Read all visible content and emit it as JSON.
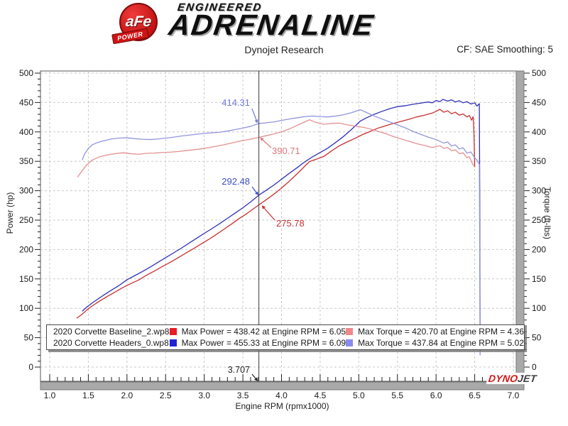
{
  "header": {
    "brand": {
      "badge_line1": "aFe",
      "badge_line2": "POWER",
      "line1": "ENGINEERED",
      "line2": "ADRENALINE"
    },
    "title": "Dynojet Research",
    "correction": "CF: SAE Smoothing: 5"
  },
  "legend": {
    "rows": [
      {
        "file": "2020 Corvette Baseline_2.wp8",
        "power_color": "#e81c24",
        "power_label": "Max Power = 438.42 at Engine RPM = 6.05",
        "torque_color": "#f08888",
        "torque_label": "Max Torque = 420.70 at Engine RPM = 4.36"
      },
      {
        "file": "2020 Corvette Headers_0.wp8",
        "power_color": "#2121d8",
        "power_label": "Max Power = 455.33 at Engine RPM = 6.09",
        "torque_color": "#8a8af0",
        "torque_label": "Max Torque = 437.84 at Engine RPM = 5.02"
      }
    ]
  },
  "footer_logo": {
    "part1": "DYNO",
    "part2": "JET"
  },
  "chart_data": {
    "type": "line",
    "title": "Dynojet Research",
    "xlabel": "Engine RPM (rpmx1000)",
    "ylabel_left": "Power (hp)",
    "ylabel_right": "Torque (ft-lbs)",
    "xlim": [
      1.0,
      7.0
    ],
    "ylim_left": [
      0,
      500
    ],
    "ylim_right": [
      0,
      500
    ],
    "grid": true,
    "x_tick_labels": [
      "1.0",
      "1.5",
      "2.0",
      "2.5",
      "3.0",
      "3.5",
      "4.0",
      "4.5",
      "5.0",
      "5.5",
      "6.0",
      "6.5",
      "7.0"
    ],
    "x_major_ticks": [
      1.0,
      1.5,
      2.0,
      2.5,
      3.0,
      3.5,
      4.0,
      4.5,
      5.0,
      5.5,
      6.0,
      6.5,
      7.0
    ],
    "y_major_ticks": [
      0,
      50,
      100,
      150,
      200,
      250,
      300,
      350,
      400,
      450,
      500
    ],
    "x_minor_step": 0.1,
    "y_minor_step": 10,
    "cursor": {
      "x": 3.707,
      "label": "3.707",
      "label_x": 352,
      "label_y": 525,
      "line": [
        355,
        527,
        360,
        533
      ]
    },
    "annotations": [
      {
        "text": "414.31",
        "color": "#6f79d8",
        "point_x": 3.707,
        "point_y": 414.31,
        "text_x": 352,
        "text_y": 149,
        "anchor": "end",
        "line": [
          355,
          153,
          361,
          169
        ]
      },
      {
        "text": "390.71",
        "color": "#e07878",
        "point_x": 3.707,
        "point_y": 390.71,
        "text_x": 383,
        "text_y": 217,
        "anchor": "start",
        "line": [
          382,
          208,
          370,
          197
        ]
      },
      {
        "text": "292.48",
        "color": "#3a4ec8",
        "point_x": 3.707,
        "point_y": 292.48,
        "text_x": 352,
        "text_y": 260,
        "anchor": "end",
        "line": [
          355,
          263,
          361,
          271
        ]
      },
      {
        "text": "275.78",
        "color": "#c83232",
        "point_x": 3.707,
        "point_y": 275.78,
        "text_x": 389,
        "text_y": 319,
        "anchor": "start",
        "line": [
          387,
          310,
          372,
          293
        ]
      }
    ],
    "series": [
      {
        "id": "baseline-power",
        "name": "2020 Corvette Baseline_2.wp8 Power (hp)",
        "color": "#c83030",
        "max": {
          "value": 438.42,
          "rpm": 6.05
        },
        "points": [
          [
            1.35,
            83
          ],
          [
            1.42,
            90
          ],
          [
            1.48,
            97
          ],
          [
            1.55,
            104
          ],
          [
            1.65,
            112.5
          ],
          [
            1.75,
            120.5
          ],
          [
            1.85,
            128
          ],
          [
            1.95,
            135.5
          ],
          [
            2.05,
            142
          ],
          [
            2.15,
            148
          ],
          [
            2.25,
            156
          ],
          [
            2.35,
            163
          ],
          [
            2.45,
            170.5
          ],
          [
            2.55,
            177.5
          ],
          [
            2.65,
            185
          ],
          [
            2.75,
            193
          ],
          [
            2.85,
            200.5
          ],
          [
            2.95,
            208.5
          ],
          [
            3.05,
            216.5
          ],
          [
            3.15,
            225
          ],
          [
            3.25,
            234
          ],
          [
            3.35,
            243
          ],
          [
            3.45,
            252.5
          ],
          [
            3.55,
            261
          ],
          [
            3.65,
            270.5
          ],
          [
            3.707,
            275.78
          ],
          [
            3.8,
            284.5
          ],
          [
            3.9,
            294
          ],
          [
            4.0,
            304.5
          ],
          [
            4.1,
            316
          ],
          [
            4.2,
            328.5
          ],
          [
            4.3,
            341.5
          ],
          [
            4.36,
            349.5
          ],
          [
            4.45,
            353.5
          ],
          [
            4.55,
            358.5
          ],
          [
            4.65,
            368
          ],
          [
            4.75,
            376.5
          ],
          [
            4.85,
            383
          ],
          [
            4.95,
            389
          ],
          [
            5.05,
            395.5
          ],
          [
            5.15,
            401
          ],
          [
            5.25,
            406.5
          ],
          [
            5.35,
            410.5
          ],
          [
            5.45,
            414.5
          ],
          [
            5.55,
            418
          ],
          [
            5.65,
            421.5
          ],
          [
            5.75,
            425.5
          ],
          [
            5.85,
            428.5
          ],
          [
            5.95,
            432
          ],
          [
            6.0,
            435
          ],
          [
            6.05,
            438.42
          ],
          [
            6.1,
            433.5
          ],
          [
            6.15,
            436
          ],
          [
            6.2,
            431
          ],
          [
            6.25,
            433.5
          ],
          [
            6.3,
            428.5
          ],
          [
            6.35,
            430.5
          ],
          [
            6.4,
            425.5
          ],
          [
            6.43,
            428
          ],
          [
            6.46,
            420
          ],
          [
            6.48,
            426
          ],
          [
            6.49,
            400
          ],
          [
            6.5,
            340
          ]
        ]
      },
      {
        "id": "headers-power",
        "name": "2020 Corvette Headers_0.wp8 Power (hp)",
        "color": "#3030b8",
        "max": {
          "value": 455.33,
          "rpm": 6.09
        },
        "points": [
          [
            1.42,
            95
          ],
          [
            1.48,
            102
          ],
          [
            1.55,
            109
          ],
          [
            1.62,
            115.5
          ],
          [
            1.7,
            122.5
          ],
          [
            1.8,
            131
          ],
          [
            1.9,
            139
          ],
          [
            2.0,
            148.5
          ],
          [
            2.1,
            155.5
          ],
          [
            2.2,
            162.5
          ],
          [
            2.3,
            170
          ],
          [
            2.4,
            178
          ],
          [
            2.5,
            186
          ],
          [
            2.6,
            194
          ],
          [
            2.7,
            202
          ],
          [
            2.8,
            210.5
          ],
          [
            2.9,
            219
          ],
          [
            3.0,
            227.5
          ],
          [
            3.1,
            235.5
          ],
          [
            3.2,
            244
          ],
          [
            3.3,
            253
          ],
          [
            3.4,
            262
          ],
          [
            3.5,
            271
          ],
          [
            3.6,
            281
          ],
          [
            3.707,
            292.48
          ],
          [
            3.8,
            300.5
          ],
          [
            3.9,
            309.5
          ],
          [
            4.0,
            319.5
          ],
          [
            4.1,
            329.5
          ],
          [
            4.2,
            339
          ],
          [
            4.3,
            349
          ],
          [
            4.4,
            357.5
          ],
          [
            4.5,
            365
          ],
          [
            4.6,
            372.5
          ],
          [
            4.7,
            382
          ],
          [
            4.8,
            392
          ],
          [
            4.9,
            403.5
          ],
          [
            5.02,
            418.5
          ],
          [
            5.1,
            424
          ],
          [
            5.2,
            430
          ],
          [
            5.3,
            435
          ],
          [
            5.4,
            439.5
          ],
          [
            5.5,
            443
          ],
          [
            5.6,
            444.5
          ],
          [
            5.7,
            447
          ],
          [
            5.8,
            449
          ],
          [
            5.9,
            451
          ],
          [
            5.95,
            449.5
          ],
          [
            6.0,
            453.5
          ],
          [
            6.05,
            451.5
          ],
          [
            6.09,
            455.33
          ],
          [
            6.15,
            452.5
          ],
          [
            6.2,
            454.5
          ],
          [
            6.25,
            451
          ],
          [
            6.3,
            453
          ],
          [
            6.35,
            449.5
          ],
          [
            6.4,
            451.5
          ],
          [
            6.45,
            447.5
          ],
          [
            6.5,
            449.5
          ],
          [
            6.53,
            444
          ],
          [
            6.56,
            448
          ],
          [
            6.565,
            300
          ],
          [
            6.57,
            40
          ]
        ]
      },
      {
        "id": "baseline-torque",
        "name": "2020 Corvette Baseline_2.wp8 Torque (ft-lbs)",
        "color": "#e49090",
        "max": {
          "value": 420.7,
          "rpm": 4.36
        },
        "points": [
          [
            1.36,
            323
          ],
          [
            1.42,
            334
          ],
          [
            1.48,
            344
          ],
          [
            1.55,
            352
          ],
          [
            1.65,
            358
          ],
          [
            1.75,
            361
          ],
          [
            1.85,
            363
          ],
          [
            1.95,
            364.5
          ],
          [
            2.05,
            363
          ],
          [
            2.15,
            362
          ],
          [
            2.25,
            363.5
          ],
          [
            2.35,
            364
          ],
          [
            2.45,
            365
          ],
          [
            2.55,
            365.5
          ],
          [
            2.65,
            366.5
          ],
          [
            2.75,
            368
          ],
          [
            2.85,
            369.5
          ],
          [
            2.95,
            371
          ],
          [
            3.05,
            373
          ],
          [
            3.15,
            375.5
          ],
          [
            3.25,
            378
          ],
          [
            3.35,
            381
          ],
          [
            3.45,
            384
          ],
          [
            3.55,
            386.5
          ],
          [
            3.65,
            389
          ],
          [
            3.707,
            390.71
          ],
          [
            3.8,
            393.5
          ],
          [
            3.9,
            396.5
          ],
          [
            4.0,
            400
          ],
          [
            4.1,
            405
          ],
          [
            4.2,
            411
          ],
          [
            4.3,
            417
          ],
          [
            4.36,
            420.7
          ],
          [
            4.45,
            416
          ],
          [
            4.55,
            413
          ],
          [
            4.65,
            414.5
          ],
          [
            4.75,
            415
          ],
          [
            4.85,
            412
          ],
          [
            4.95,
            410
          ],
          [
            5.05,
            408
          ],
          [
            5.15,
            405
          ],
          [
            5.25,
            401
          ],
          [
            5.35,
            397
          ],
          [
            5.45,
            392
          ],
          [
            5.55,
            388
          ],
          [
            5.65,
            384
          ],
          [
            5.75,
            380
          ],
          [
            5.85,
            377
          ],
          [
            5.95,
            373.5
          ],
          [
            6.0,
            375
          ],
          [
            6.05,
            376.5
          ],
          [
            6.1,
            372
          ],
          [
            6.15,
            373.5
          ],
          [
            6.2,
            368
          ],
          [
            6.25,
            369.5
          ],
          [
            6.3,
            363
          ],
          [
            6.35,
            364.5
          ],
          [
            6.4,
            356
          ],
          [
            6.43,
            358
          ],
          [
            6.46,
            349
          ],
          [
            6.48,
            344
          ],
          [
            6.5,
            341
          ]
        ]
      },
      {
        "id": "headers-torque",
        "name": "2020 Corvette Headers_0.wp8 Torque (ft-lbs)",
        "color": "#9096dc",
        "max": {
          "value": 437.84,
          "rpm": 5.02
        },
        "points": [
          [
            1.42,
            352
          ],
          [
            1.45,
            362
          ],
          [
            1.5,
            372
          ],
          [
            1.55,
            378
          ],
          [
            1.62,
            382
          ],
          [
            1.7,
            385
          ],
          [
            1.8,
            388
          ],
          [
            1.9,
            389.5
          ],
          [
            2.0,
            390
          ],
          [
            2.1,
            388.5
          ],
          [
            2.2,
            387.5
          ],
          [
            2.3,
            387
          ],
          [
            2.4,
            388
          ],
          [
            2.5,
            389.5
          ],
          [
            2.6,
            391
          ],
          [
            2.7,
            393
          ],
          [
            2.8,
            394.5
          ],
          [
            2.9,
            396
          ],
          [
            3.0,
            397.5
          ],
          [
            3.1,
            398.5
          ],
          [
            3.2,
            399.5
          ],
          [
            3.3,
            401.5
          ],
          [
            3.4,
            404
          ],
          [
            3.5,
            406.5
          ],
          [
            3.6,
            409.5
          ],
          [
            3.707,
            414.31
          ],
          [
            3.8,
            415.5
          ],
          [
            3.9,
            417
          ],
          [
            4.0,
            419.5
          ],
          [
            4.1,
            422
          ],
          [
            4.2,
            424
          ],
          [
            4.3,
            426
          ],
          [
            4.4,
            427
          ],
          [
            4.5,
            426
          ],
          [
            4.6,
            425.5
          ],
          [
            4.7,
            427
          ],
          [
            4.8,
            429
          ],
          [
            4.9,
            432.5
          ],
          [
            5.02,
            437.84
          ],
          [
            5.1,
            433
          ],
          [
            5.2,
            427
          ],
          [
            5.3,
            422
          ],
          [
            5.4,
            417
          ],
          [
            5.5,
            412
          ],
          [
            5.6,
            407
          ],
          [
            5.7,
            401
          ],
          [
            5.8,
            396
          ],
          [
            5.9,
            391
          ],
          [
            6.0,
            387
          ],
          [
            6.1,
            381
          ],
          [
            6.15,
            383
          ],
          [
            6.2,
            376
          ],
          [
            6.25,
            378
          ],
          [
            6.3,
            371
          ],
          [
            6.35,
            373
          ],
          [
            6.4,
            364
          ],
          [
            6.45,
            366
          ],
          [
            6.5,
            356
          ],
          [
            6.53,
            352
          ],
          [
            6.56,
            345
          ],
          [
            6.565,
            200
          ],
          [
            6.57,
            20
          ]
        ]
      }
    ]
  }
}
